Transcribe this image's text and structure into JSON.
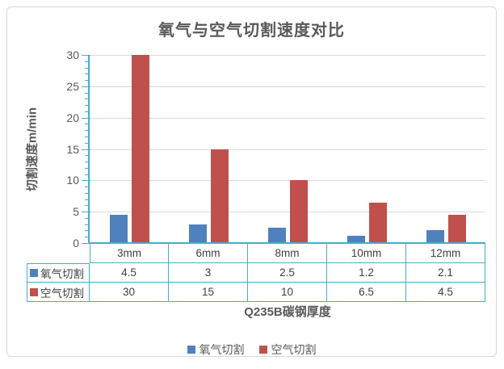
{
  "chart_data": {
    "type": "bar",
    "title": "氧气与空气切割速度对比",
    "categories": [
      "3mm",
      "6mm",
      "8mm",
      "10mm",
      "12mm"
    ],
    "series": [
      {
        "name": "氧气切割",
        "color": "#4F81BD",
        "values": [
          4.5,
          3,
          2.5,
          1.2,
          2.1
        ]
      },
      {
        "name": "空气切割",
        "color": "#C0504D",
        "values": [
          30,
          15,
          10,
          6.5,
          4.5
        ]
      }
    ],
    "xlabel": "Q235B碳钢厚度",
    "ylabel": "切割速度m/min",
    "ylim": [
      0,
      30
    ],
    "y_ticks": [
      0,
      5,
      10,
      15,
      20,
      25,
      30
    ],
    "y_minor_step": 1,
    "grid": true,
    "legend_position": "bottom",
    "data_table_with_legend_keys": true,
    "colors": {
      "axis": "#4BACC6",
      "gridline": "#D9D9D9",
      "text": "#595959",
      "table_text": "#3F3F3F",
      "frame_border": "#D9D9D9"
    }
  }
}
